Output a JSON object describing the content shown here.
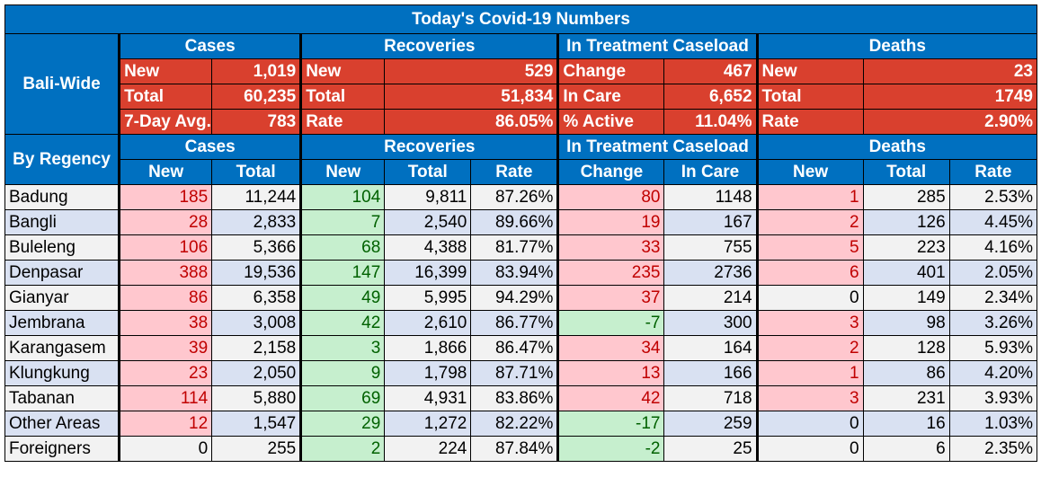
{
  "title": "Today's Covid-19 Numbers",
  "bali_wide": {
    "label": "Bali-Wide",
    "groups": [
      "Cases",
      "Recoveries",
      "In Treatment Caseload",
      "Deaths"
    ],
    "rows": [
      [
        [
          "New",
          "1,019"
        ],
        [
          "New",
          "529"
        ],
        [
          "Change",
          "467"
        ],
        [
          "New",
          "23"
        ]
      ],
      [
        [
          "Total",
          "60,235"
        ],
        [
          "Total",
          "51,834"
        ],
        [
          "In Care",
          "6,652"
        ],
        [
          "Total",
          "1749"
        ]
      ],
      [
        [
          "7-Day Avg.",
          "783"
        ],
        [
          "Rate",
          "86.05%"
        ],
        [
          "% Active",
          "11.04%"
        ],
        [
          "Rate",
          "2.90%"
        ]
      ]
    ]
  },
  "by_regency": {
    "label": "By Regency",
    "groups": [
      "Cases",
      "Recoveries",
      "In Treatment Caseload",
      "Deaths"
    ],
    "subheaders": [
      "New",
      "Total",
      "New",
      "Total",
      "Rate",
      "Change",
      "In Care",
      "New",
      "Total",
      "Rate"
    ],
    "rows": [
      {
        "name": "Badung",
        "cells": [
          "185",
          "11,244",
          "104",
          "9,811",
          "87.26%",
          "80",
          "1148",
          "1",
          "285",
          "2.53%"
        ]
      },
      {
        "name": "Bangli",
        "cells": [
          "28",
          "2,833",
          "7",
          "2,540",
          "89.66%",
          "19",
          "167",
          "2",
          "126",
          "4.45%"
        ]
      },
      {
        "name": "Buleleng",
        "cells": [
          "106",
          "5,366",
          "68",
          "4,388",
          "81.77%",
          "33",
          "755",
          "5",
          "223",
          "4.16%"
        ]
      },
      {
        "name": "Denpasar",
        "cells": [
          "388",
          "19,536",
          "147",
          "16,399",
          "83.94%",
          "235",
          "2736",
          "6",
          "401",
          "2.05%"
        ]
      },
      {
        "name": "Gianyar",
        "cells": [
          "86",
          "6,358",
          "49",
          "5,995",
          "94.29%",
          "37",
          "214",
          "0",
          "149",
          "2.34%"
        ]
      },
      {
        "name": "Jembrana",
        "cells": [
          "38",
          "3,008",
          "42",
          "2,610",
          "86.77%",
          "-7",
          "300",
          "3",
          "98",
          "3.26%"
        ]
      },
      {
        "name": "Karangasem",
        "cells": [
          "39",
          "2,158",
          "3",
          "1,866",
          "86.47%",
          "34",
          "164",
          "2",
          "128",
          "5.93%"
        ]
      },
      {
        "name": "Klungkung",
        "cells": [
          "23",
          "2,050",
          "9",
          "1,798",
          "87.71%",
          "13",
          "166",
          "1",
          "86",
          "4.20%"
        ]
      },
      {
        "name": "Tabanan",
        "cells": [
          "114",
          "5,880",
          "69",
          "4,931",
          "83.86%",
          "42",
          "718",
          "3",
          "231",
          "3.93%"
        ]
      },
      {
        "name": "Other Areas",
        "cells": [
          "12",
          "1,547",
          "29",
          "1,272",
          "82.22%",
          "-17",
          "259",
          "0",
          "16",
          "1.03%"
        ]
      },
      {
        "name": "Foreigners",
        "cells": [
          "0",
          "255",
          "2",
          "224",
          "87.84%",
          "-2",
          "25",
          "0",
          "6",
          "2.35%"
        ]
      }
    ]
  },
  "colors": {
    "header_blue": "#0070C0",
    "summary_red": "#D9402E",
    "increase_bg": "#FFC7CE",
    "increase_text": "#C00000",
    "decrease_bg": "#C6EFCE",
    "decrease_text": "#006100",
    "row_light": "#F2F2F2",
    "row_blue": "#D9E1F2"
  }
}
